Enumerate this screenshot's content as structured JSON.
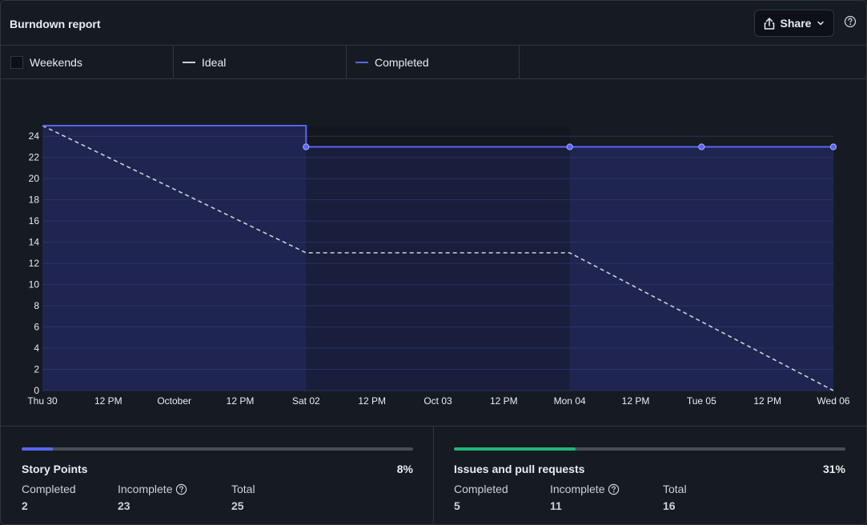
{
  "header": {
    "title": "Burndown report",
    "share_label": "Share",
    "share_icon": "share-icon",
    "help_icon": "question-icon"
  },
  "legend": {
    "weekends": {
      "label": "Weekends",
      "color": "#0d1117"
    },
    "ideal": {
      "label": "Ideal",
      "color": "#c9d1d9"
    },
    "completed": {
      "label": "Completed",
      "color": "#5865f2"
    }
  },
  "chart_data": {
    "type": "line",
    "title": "",
    "xlabel": "",
    "ylabel": "",
    "ylim": [
      0,
      25
    ],
    "yticks": [
      0,
      2,
      4,
      6,
      8,
      10,
      12,
      14,
      16,
      18,
      20,
      22,
      24
    ],
    "xticks": [
      "Thu 30",
      "12 PM",
      "October",
      "12 PM",
      "Sat 02",
      "12 PM",
      "Oct 03",
      "12 PM",
      "Mon 04",
      "12 PM",
      "Tue 05",
      "12 PM",
      "Wed 06"
    ],
    "weekend_range": [
      "Sat 02",
      "Mon 04"
    ],
    "grid": true,
    "series": [
      {
        "name": "Ideal",
        "style": "dashed",
        "color": "#c9d1d9",
        "points": [
          [
            "Thu 30",
            25
          ],
          [
            "Sat 02",
            13
          ],
          [
            "Mon 04",
            13
          ],
          [
            "Wed 06 (end)",
            0
          ]
        ]
      },
      {
        "name": "Completed",
        "style": "step",
        "color": "#5865f2",
        "points": [
          [
            "Thu 30",
            25
          ],
          [
            "Sat 02",
            25
          ],
          [
            "Sat 02",
            23
          ],
          [
            "Mon 04",
            23
          ],
          [
            "Tue 05",
            23
          ],
          [
            "Wed 06",
            23
          ],
          [
            "Wed 06 (end)",
            23
          ]
        ],
        "markers": [
          "Sat 02",
          "Mon 04",
          "Tue 05",
          "Wed 06"
        ]
      }
    ]
  },
  "stats": {
    "story_points": {
      "title": "Story Points",
      "percent_label": "8%",
      "progress": 0.08,
      "bar_color": "#5865f2",
      "completed_label": "Completed",
      "completed": "2",
      "incomplete_label": "Incomplete",
      "incomplete": "23",
      "total_label": "Total",
      "total": "25"
    },
    "issues": {
      "title": "Issues and pull requests",
      "percent_label": "31%",
      "progress": 0.31,
      "bar_color": "#1fb57a",
      "completed_label": "Completed",
      "completed": "5",
      "incomplete_label": "Incomplete",
      "incomplete": "11",
      "total_label": "Total",
      "total": "16"
    }
  }
}
